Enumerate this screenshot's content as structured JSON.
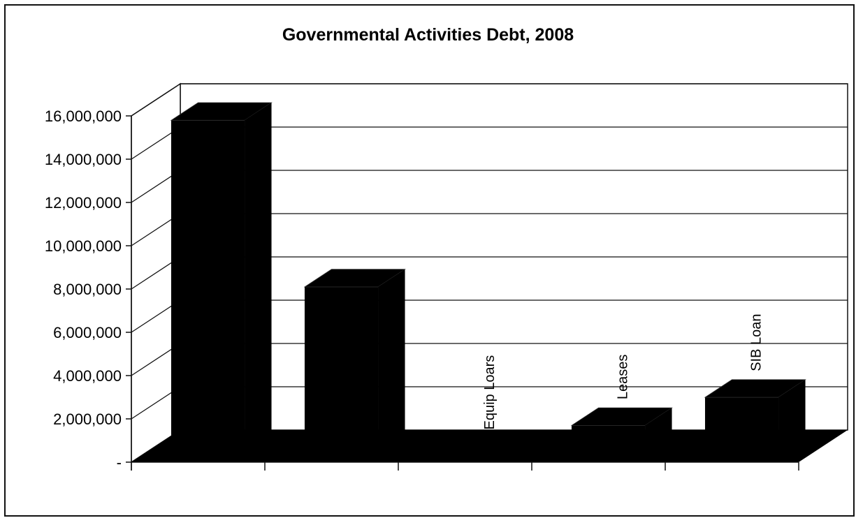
{
  "chart_data": {
    "type": "bar",
    "title": "Governmental Activities Debt, 2008",
    "xlabel": "",
    "ylabel": "",
    "ylim": [
      0,
      16000000
    ],
    "yticks": [
      0,
      2000000,
      4000000,
      6000000,
      8000000,
      10000000,
      12000000,
      14000000,
      16000000
    ],
    "ytick_labels": [
      "-",
      "2,000,000",
      "4,000,000",
      "6,000,000",
      "8,000,000",
      "10,000,000",
      "12,000,000",
      "14,000,000",
      "16,000,000"
    ],
    "categories": [
      "",
      "",
      "Equip Loars",
      "Leases",
      "SIB Loan"
    ],
    "values": [
      15500000,
      7800000,
      0,
      1400000,
      2700000
    ],
    "grid": true,
    "three_d": true,
    "bar_color": "#000000",
    "legend": "none"
  }
}
